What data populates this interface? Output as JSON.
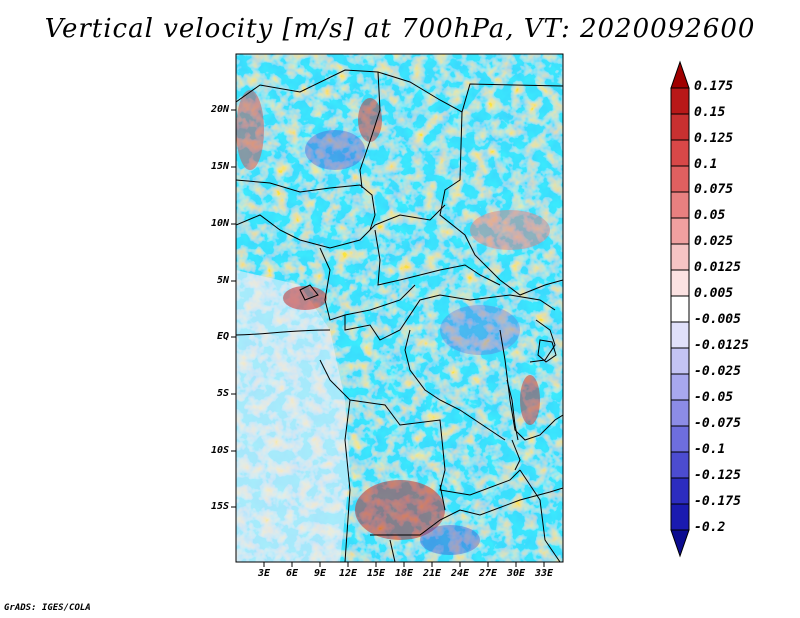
{
  "title": "Vertical velocity [m/s] at 700hPa, VT: 2020092600",
  "footer": "GrADS: IGES/COLA",
  "lat_labels": [
    "20N",
    "15N",
    "10N",
    "5N",
    "EQ",
    "5S",
    "10S",
    "15S"
  ],
  "lon_labels": [
    "3E",
    "6E",
    "9E",
    "12E",
    "15E",
    "18E",
    "21E",
    "24E",
    "27E",
    "30E",
    "33E"
  ],
  "colorbar": {
    "labels": [
      "0.175",
      "0.15",
      "0.125",
      "0.1",
      "0.075",
      "0.05",
      "0.025",
      "0.0125",
      "0.005",
      "-0.005",
      "-0.0125",
      "-0.025",
      "-0.05",
      "-0.075",
      "-0.1",
      "-0.125",
      "-0.175",
      "-0.2"
    ],
    "colors": [
      "#a00000",
      "#b81818",
      "#c83030",
      "#d84848",
      "#e06060",
      "#e88080",
      "#f0a0a0",
      "#f6c4c4",
      "#fbe2e2",
      "#ffffff",
      "#e0e0fa",
      "#c4c4f4",
      "#a8a8ee",
      "#8c8ce6",
      "#6e6ede",
      "#4c4cd0",
      "#2c2cc0",
      "#1a1ab0",
      "#0c0c90"
    ]
  }
}
